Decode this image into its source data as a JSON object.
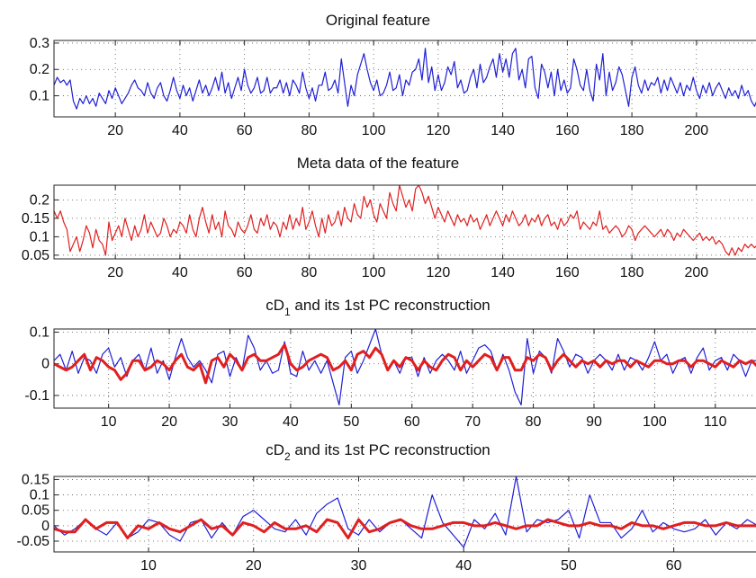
{
  "chart_data": [
    {
      "type": "line",
      "title": "Original feature",
      "title_sub": "",
      "title_rest": "",
      "xlim": [
        1,
        219
      ],
      "ylim": [
        0.02,
        0.31
      ],
      "xticks": [
        20,
        40,
        60,
        80,
        100,
        120,
        140,
        160,
        180,
        200
      ],
      "yticks": [
        0.1,
        0.2,
        0.3
      ],
      "ytick_labels": [
        "0.1",
        "0.2",
        "0.3"
      ],
      "grid": true,
      "series": [
        {
          "color": "#1f1fd6",
          "y": [
            0.14,
            0.17,
            0.15,
            0.16,
            0.14,
            0.16,
            0.08,
            0.05,
            0.09,
            0.07,
            0.1,
            0.07,
            0.09,
            0.06,
            0.11,
            0.09,
            0.07,
            0.12,
            0.09,
            0.13,
            0.1,
            0.07,
            0.09,
            0.11,
            0.14,
            0.16,
            0.13,
            0.12,
            0.1,
            0.15,
            0.11,
            0.09,
            0.13,
            0.15,
            0.1,
            0.08,
            0.12,
            0.17,
            0.12,
            0.09,
            0.14,
            0.1,
            0.13,
            0.08,
            0.12,
            0.16,
            0.11,
            0.14,
            0.1,
            0.13,
            0.17,
            0.12,
            0.19,
            0.11,
            0.15,
            0.09,
            0.13,
            0.17,
            0.12,
            0.2,
            0.14,
            0.11,
            0.13,
            0.17,
            0.11,
            0.12,
            0.17,
            0.11,
            0.13,
            0.13,
            0.16,
            0.11,
            0.15,
            0.1,
            0.16,
            0.14,
            0.11,
            0.19,
            0.13,
            0.09,
            0.13,
            0.08,
            0.14,
            0.14,
            0.19,
            0.12,
            0.13,
            0.16,
            0.11,
            0.24,
            0.15,
            0.06,
            0.14,
            0.1,
            0.18,
            0.22,
            0.26,
            0.2,
            0.15,
            0.12,
            0.16,
            0.1,
            0.11,
            0.14,
            0.19,
            0.12,
            0.13,
            0.18,
            0.1,
            0.16,
            0.14,
            0.19,
            0.2,
            0.24,
            0.16,
            0.28,
            0.15,
            0.21,
            0.12,
            0.18,
            0.12,
            0.15,
            0.21,
            0.18,
            0.23,
            0.13,
            0.16,
            0.11,
            0.12,
            0.17,
            0.2,
            0.13,
            0.22,
            0.15,
            0.17,
            0.21,
            0.24,
            0.17,
            0.26,
            0.19,
            0.24,
            0.17,
            0.26,
            0.28,
            0.16,
            0.2,
            0.13,
            0.24,
            0.25,
            0.13,
            0.09,
            0.22,
            0.19,
            0.13,
            0.19,
            0.1,
            0.2,
            0.12,
            0.16,
            0.11,
            0.13,
            0.24,
            0.2,
            0.14,
            0.12,
            0.2,
            0.12,
            0.08,
            0.22,
            0.16,
            0.26,
            0.1,
            0.19,
            0.12,
            0.15,
            0.21,
            0.18,
            0.12,
            0.06,
            0.17,
            0.21,
            0.14,
            0.11,
            0.16,
            0.12,
            0.15,
            0.14,
            0.17,
            0.11,
            0.16,
            0.12,
            0.17,
            0.14,
            0.11,
            0.15,
            0.1,
            0.14,
            0.12,
            0.17,
            0.12,
            0.09,
            0.14,
            0.11,
            0.15,
            0.1,
            0.13,
            0.15,
            0.12,
            0.09,
            0.13,
            0.1,
            0.12,
            0.09,
            0.14,
            0.1,
            0.12,
            0.08,
            0.06,
            0.09,
            0.05,
            0.08,
            0.07,
            0.09,
            0.06,
            0.1,
            0.08,
            0.06,
            0.09,
            0.07,
            0.1,
            0.06
          ]
        }
      ]
    },
    {
      "type": "line",
      "title": "Meta data of the feature",
      "title_sub": "",
      "title_rest": "",
      "xlim": [
        1,
        219
      ],
      "ylim": [
        0.04,
        0.24
      ],
      "xticks": [
        20,
        40,
        60,
        80,
        100,
        120,
        140,
        160,
        180,
        200
      ],
      "yticks": [
        0.05,
        0.1,
        0.15,
        0.2
      ],
      "ytick_labels": [
        "0.05",
        "0.1",
        "0.15",
        "0.2"
      ],
      "grid": true,
      "series": [
        {
          "color": "#e02020",
          "y": [
            0.17,
            0.15,
            0.17,
            0.14,
            0.12,
            0.06,
            0.08,
            0.1,
            0.06,
            0.09,
            0.13,
            0.11,
            0.07,
            0.12,
            0.09,
            0.08,
            0.05,
            0.14,
            0.09,
            0.11,
            0.13,
            0.1,
            0.15,
            0.12,
            0.09,
            0.13,
            0.1,
            0.12,
            0.16,
            0.11,
            0.14,
            0.12,
            0.1,
            0.11,
            0.15,
            0.13,
            0.1,
            0.12,
            0.11,
            0.14,
            0.13,
            0.11,
            0.16,
            0.12,
            0.1,
            0.15,
            0.18,
            0.14,
            0.11,
            0.16,
            0.12,
            0.14,
            0.1,
            0.17,
            0.13,
            0.12,
            0.1,
            0.14,
            0.12,
            0.11,
            0.13,
            0.16,
            0.12,
            0.11,
            0.15,
            0.13,
            0.16,
            0.12,
            0.14,
            0.13,
            0.1,
            0.14,
            0.12,
            0.16,
            0.12,
            0.15,
            0.13,
            0.18,
            0.12,
            0.14,
            0.17,
            0.13,
            0.1,
            0.15,
            0.11,
            0.16,
            0.13,
            0.14,
            0.17,
            0.13,
            0.18,
            0.15,
            0.14,
            0.19,
            0.16,
            0.15,
            0.21,
            0.18,
            0.2,
            0.16,
            0.14,
            0.19,
            0.17,
            0.15,
            0.22,
            0.19,
            0.17,
            0.24,
            0.21,
            0.18,
            0.2,
            0.17,
            0.23,
            0.24,
            0.22,
            0.19,
            0.21,
            0.18,
            0.15,
            0.18,
            0.16,
            0.14,
            0.17,
            0.15,
            0.13,
            0.16,
            0.14,
            0.15,
            0.13,
            0.16,
            0.14,
            0.15,
            0.12,
            0.14,
            0.16,
            0.13,
            0.15,
            0.17,
            0.15,
            0.13,
            0.16,
            0.14,
            0.17,
            0.15,
            0.13,
            0.14,
            0.16,
            0.13,
            0.15,
            0.14,
            0.16,
            0.13,
            0.15,
            0.16,
            0.13,
            0.14,
            0.12,
            0.15,
            0.13,
            0.14,
            0.16,
            0.15,
            0.17,
            0.12,
            0.14,
            0.13,
            0.12,
            0.14,
            0.13,
            0.17,
            0.12,
            0.13,
            0.11,
            0.12,
            0.13,
            0.12,
            0.1,
            0.11,
            0.13,
            0.12,
            0.09,
            0.11,
            0.12,
            0.13,
            0.12,
            0.11,
            0.1,
            0.11,
            0.12,
            0.1,
            0.12,
            0.11,
            0.09,
            0.11,
            0.1,
            0.12,
            0.11,
            0.1,
            0.09,
            0.1,
            0.11,
            0.09,
            0.1,
            0.09,
            0.1,
            0.08,
            0.09,
            0.08,
            0.06,
            0.05,
            0.07,
            0.05,
            0.07,
            0.06,
            0.08,
            0.07,
            0.08,
            0.07,
            0.08,
            0.08
          ]
        }
      ]
    },
    {
      "type": "line",
      "title": "cD",
      "title_sub": "1",
      "title_rest": " and its 1st PC reconstruction",
      "xlim": [
        1,
        117
      ],
      "ylim": [
        -0.14,
        0.11
      ],
      "xticks": [
        10,
        20,
        30,
        40,
        50,
        60,
        70,
        80,
        90,
        100,
        110
      ],
      "yticks": [
        -0.1,
        0,
        0.1
      ],
      "ytick_labels": [
        "-0.1",
        "0",
        "0.1"
      ],
      "grid": true,
      "series": [
        {
          "color": "#1f1fd6",
          "y": [
            0.01,
            0.03,
            -0.02,
            0.04,
            -0.03,
            0.02,
            0.01,
            -0.03,
            0.03,
            0.05,
            -0.01,
            0.02,
            -0.04,
            0.01,
            0.03,
            -0.02,
            0.05,
            -0.03,
            0.01,
            -0.05,
            0.02,
            0.08,
            0.02,
            -0.01,
            0.01,
            -0.02,
            -0.06,
            0.03,
            0.04,
            -0.04,
            0.02,
            -0.02,
            0.09,
            0.05,
            -0.02,
            0.01,
            -0.03,
            -0.02,
            0.07,
            -0.03,
            -0.04,
            0.04,
            -0.02,
            0.01,
            -0.03,
            0.01,
            -0.06,
            -0.13,
            0.02,
            0.04,
            -0.03,
            0.01,
            0.06,
            0.11,
            0.03,
            -0.02,
            0.01,
            -0.03,
            0.02,
            0.02,
            -0.04,
            0.02,
            -0.03,
            0.01,
            0.03,
            0.01,
            -0.02,
            0.04,
            -0.03,
            0.01,
            0.05,
            0.06,
            0.04,
            -0.02,
            0.03,
            -0.02,
            -0.09,
            -0.13,
            0.08,
            -0.03,
            0.04,
            0.02,
            -0.03,
            0.08,
            0.04,
            -0.01,
            0.03,
            0.02,
            -0.03,
            0.01,
            0.03,
            0.01,
            -0.02,
            0.03,
            -0.02,
            0.02,
            0.01,
            -0.02,
            0.02,
            0.07,
            0.01,
            0.03,
            -0.03,
            0.01,
            0.02,
            -0.03,
            0.02,
            0.05,
            -0.02,
            0.01,
            0.02,
            -0.02,
            0.03,
            0.01,
            -0.04,
            0.01,
            0.01
          ]
        },
        {
          "color": "#e02020",
          "y": [
            0,
            -0.01,
            -0.02,
            -0.01,
            0.01,
            0.03,
            -0.02,
            0.02,
            0.01,
            -0.01,
            -0.02,
            -0.05,
            -0.03,
            0.01,
            0.01,
            -0.02,
            -0.01,
            0.01,
            0,
            -0.02,
            0.01,
            0.03,
            -0.01,
            -0.02,
            0,
            -0.06,
            0.01,
            0.02,
            -0.01,
            0.03,
            0.01,
            -0.02,
            0.02,
            0.03,
            0.01,
            0.01,
            0.02,
            0.03,
            0.06,
            0,
            -0.02,
            -0.01,
            0.01,
            0.02,
            0.03,
            0.02,
            -0.02,
            -0.01,
            0.01,
            -0.02,
            0.03,
            0.04,
            0.02,
            0.05,
            0.03,
            -0.02,
            0.01,
            -0.01,
            0.02,
            0.01,
            -0.02,
            0.01,
            -0.01,
            -0.02,
            0.01,
            0.03,
            0.02,
            -0.02,
            0.01,
            -0.01,
            0.01,
            0.03,
            0.02,
            -0.02,
            0.02,
            0.02,
            -0.02,
            -0.02,
            0.02,
            0.01,
            0.03,
            0.02,
            -0.02,
            0.01,
            0.03,
            0.01,
            -0.01,
            0.01,
            0,
            0.01,
            -0.01,
            0.01,
            0,
            0.01,
            0.01,
            -0.01,
            0.01,
            0,
            -0.01,
            0.01,
            0.01,
            0,
            0,
            0.01,
            0.01,
            -0.01,
            0.01,
            0.01,
            0,
            -0.01,
            0.01,
            0,
            -0.01,
            0.01,
            0,
            0.01,
            -0.01
          ]
        }
      ]
    },
    {
      "type": "line",
      "title": "cD",
      "title_sub": "2",
      "title_rest": " and its 1st PC reconstruction",
      "xlim": [
        1,
        68
      ],
      "ylim": [
        -0.085,
        0.16
      ],
      "xticks": [
        10,
        20,
        30,
        40,
        50,
        60
      ],
      "yticks": [
        -0.05,
        0,
        0.05,
        0.1,
        0.15
      ],
      "ytick_labels": [
        "-0.05",
        "0",
        "0.05",
        "0.1",
        "0.15"
      ],
      "grid": true,
      "series": [
        {
          "color": "#1f1fd6",
          "y": [
            0,
            -0.03,
            -0.01,
            0.02,
            -0.01,
            -0.03,
            0.01,
            -0.04,
            -0.02,
            0.02,
            0.01,
            -0.03,
            -0.05,
            0.01,
            0.02,
            -0.04,
            0.01,
            -0.03,
            0.03,
            0.05,
            0.02,
            -0.01,
            -0.02,
            0.02,
            -0.03,
            0.04,
            0.07,
            0.09,
            -0.01,
            -0.03,
            0.02,
            -0.02,
            0.01,
            0.02,
            -0.01,
            -0.04,
            0.1,
            0.01,
            -0.03,
            -0.07,
            0.02,
            -0.01,
            0.04,
            -0.03,
            0.16,
            -0.02,
            0.02,
            0.01,
            0.02,
            0.05,
            -0.04,
            0.1,
            0.01,
            0.01,
            -0.04,
            -0.01,
            0.05,
            -0.02,
            0.01,
            -0.01,
            -0.02,
            -0.01,
            0.02,
            -0.03,
            0.01,
            -0.01,
            0.02,
            0
          ]
        },
        {
          "color": "#e02020",
          "y": [
            -0.01,
            -0.02,
            -0.02,
            0.02,
            -0.01,
            0.01,
            0.01,
            -0.04,
            0,
            -0.01,
            0.01,
            -0.01,
            -0.02,
            0,
            0.02,
            -0.01,
            0,
            -0.03,
            0.01,
            0,
            -0.02,
            0.01,
            -0.01,
            -0.01,
            0,
            -0.02,
            0.02,
            0.01,
            -0.04,
            0.02,
            -0.02,
            -0.01,
            0.01,
            0.02,
            0,
            -0.01,
            -0.01,
            0,
            0.01,
            0.01,
            0,
            0,
            0.01,
            0,
            -0.01,
            0,
            0,
            0.02,
            0.01,
            0,
            0,
            0.01,
            0,
            0,
            -0.01,
            0.01,
            0,
            0,
            -0.01,
            0,
            0.01,
            0.01,
            0,
            0,
            0.01,
            0,
            0,
            0
          ]
        }
      ]
    }
  ]
}
